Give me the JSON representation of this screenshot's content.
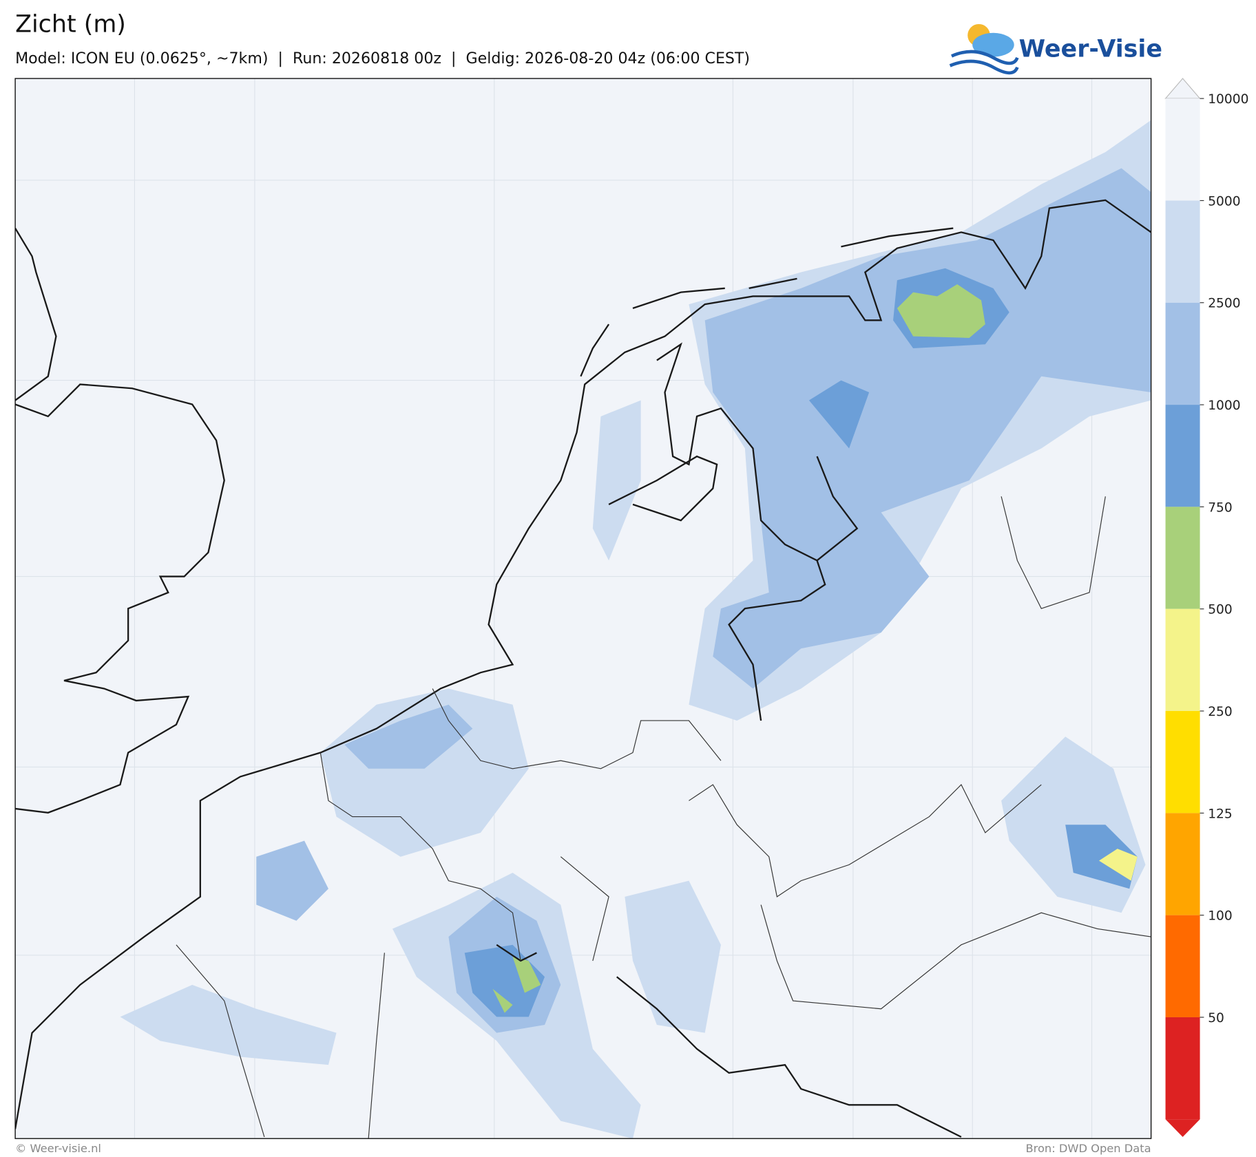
{
  "header": {
    "title": "Zicht (m)",
    "subtitle": "Model: ICON EU (0.0625°, ~7km)  |  Run: 20260818 00z  |  Geldig: 2026-08-20 04z (06:00 CEST)",
    "logo": "Weer-Visie"
  },
  "colorbar": {
    "levels": [
      10000,
      5000,
      2500,
      1000,
      750,
      500,
      250,
      125,
      100,
      50
    ],
    "colors": [
      "#f1f4f9",
      "#f1f4f9",
      "#ccdcf0",
      "#a2c0e6",
      "#6c9fd8",
      "#a8d07a",
      "#f4f38a",
      "#ffde00",
      "#ffa500",
      "#ff6a00",
      "#dd2222"
    ]
  },
  "footer": {
    "left": "© Weer-visie.nl",
    "right": "Bron: DWD Open Data"
  }
}
